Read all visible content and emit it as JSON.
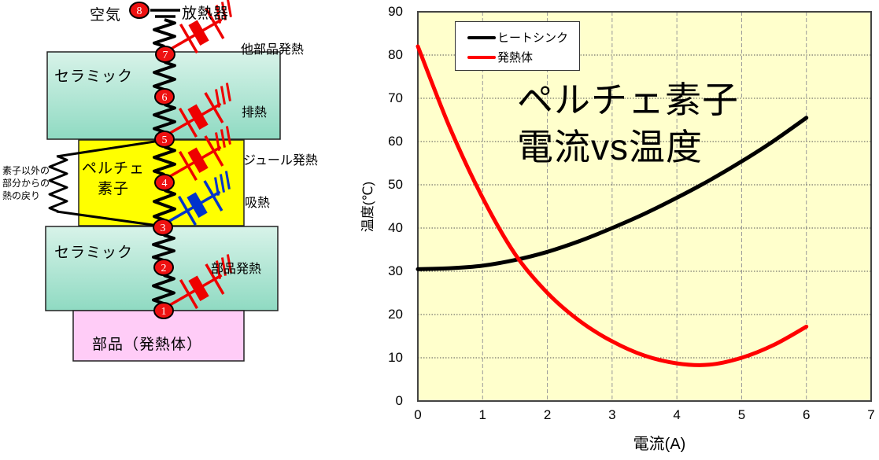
{
  "diagram": {
    "labels": {
      "air": "空気",
      "radiator": "放熱器",
      "ceramic_top": "セラミック",
      "ceramic_bottom": "セラミック",
      "peltier_line1": "ペルチェ",
      "peltier_line2": "素子",
      "component": "部品（発熱体）",
      "return_path_lines": [
        "素子以外の",
        "部分からの",
        "熱の戻り"
      ]
    },
    "nodes": [
      "8",
      "7",
      "6",
      "5",
      "4",
      "3",
      "2",
      "1"
    ],
    "sources": [
      {
        "label": "他部品発熱",
        "color": "#ee0000"
      },
      {
        "label": "排熱",
        "color": "#ee0000"
      },
      {
        "label": "ジュール発熱",
        "color": "#ee0000"
      },
      {
        "label": "吸熱",
        "color": "#0033cc"
      },
      {
        "label": "部品発熱",
        "color": "#ee0000"
      }
    ],
    "colors": {
      "ceramic_light": "#d8f3e9",
      "ceramic_dark": "#8fdac2",
      "peltier": "#ffff00",
      "component": "#ffccf7",
      "node_fill": "#ee1111",
      "wire": "#000000"
    }
  },
  "chart_data": {
    "type": "line",
    "title_lines": [
      "ペルチェ素子",
      "電流vs温度"
    ],
    "xlabel": "電流(A)",
    "ylabel": "温度(℃)",
    "xlim": [
      0,
      7
    ],
    "ylim": [
      0,
      90
    ],
    "xticks": [
      0,
      1,
      2,
      3,
      4,
      5,
      6,
      7
    ],
    "yticks": [
      0,
      10,
      20,
      30,
      40,
      50,
      60,
      70,
      80,
      90
    ],
    "grid": true,
    "legend_position": "top-left",
    "plot_bg": "#ffffcc",
    "x": [
      0,
      0.5,
      1,
      1.5,
      2,
      2.5,
      3,
      3.5,
      4,
      4.5,
      5,
      5.5,
      6
    ],
    "series": [
      {
        "name": "ヒートシンク",
        "color": "#000000",
        "values": [
          30.5,
          30.7,
          31.3,
          32.6,
          34.5,
          37.0,
          40.0,
          43.3,
          47.0,
          51.0,
          55.4,
          60.2,
          65.5
        ]
      },
      {
        "name": "発熱体",
        "color": "#ff0000",
        "values": [
          82,
          63,
          47,
          34,
          25,
          18.5,
          13.8,
          10.5,
          8.7,
          8.4,
          10.0,
          13.0,
          17.2
        ]
      }
    ]
  }
}
